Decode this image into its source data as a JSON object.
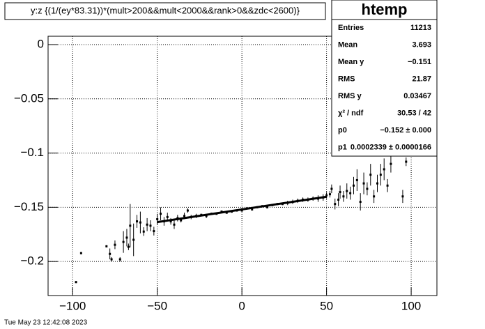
{
  "chart_data": {
    "type": "scatter",
    "title": "y:z {(1/(ey*83.31))*(mult>200&&mult<2000&&rank>0&&zdc<2600)}",
    "footer": "Tue May 23 12:42:08 2023",
    "xlim": [
      -114.5,
      115.2
    ],
    "ylim": [
      -0.2314,
      0.0077
    ],
    "xticks": [
      {
        "value": -100,
        "label": "−100"
      },
      {
        "value": -50,
        "label": "−50"
      },
      0,
      50,
      100
    ],
    "yticks": [
      0,
      {
        "value": -0.05,
        "label": "−0.05"
      },
      {
        "value": -0.1,
        "label": "−0.1"
      },
      {
        "value": -0.15,
        "label": "−0.15"
      },
      {
        "value": -0.2,
        "label": "−0.2"
      }
    ],
    "grid": true,
    "color": "#000000",
    "x": [
      -98,
      -95,
      -80,
      -78,
      -77,
      -75,
      -72,
      -70,
      -68,
      -67,
      -66,
      -64,
      -62,
      -60,
      -58,
      -56,
      -54,
      -52,
      -50,
      -48,
      -46,
      -44,
      -42,
      -40,
      -38,
      -36,
      -34,
      -32,
      -30,
      -27,
      -24,
      -21,
      -18,
      -15,
      -12,
      -9,
      -6,
      -3,
      0,
      3,
      6,
      9,
      12,
      15,
      18,
      21,
      24,
      27,
      30,
      33,
      36,
      39,
      42,
      45,
      48,
      50,
      52,
      53,
      55,
      57,
      58,
      60,
      62,
      64,
      66,
      68,
      70,
      72,
      74,
      76,
      78,
      80,
      82,
      84,
      86,
      88,
      95,
      97
    ],
    "values": [
      -0.219,
      -0.1923,
      -0.186,
      -0.193,
      -0.198,
      -0.1846,
      -0.198,
      -0.182,
      -0.178,
      -0.1865,
      -0.167,
      -0.18,
      -0.163,
      -0.164,
      -0.1724,
      -0.166,
      -0.167,
      -0.172,
      -0.161,
      -0.156,
      -0.163,
      -0.159,
      -0.163,
      -0.166,
      -0.16,
      -0.162,
      -0.158,
      -0.153,
      -0.159,
      -0.158,
      -0.157,
      -0.158,
      -0.156,
      -0.156,
      -0.154,
      -0.155,
      -0.154,
      -0.153,
      -0.153,
      -0.151,
      -0.152,
      -0.15,
      -0.149,
      -0.15,
      -0.148,
      -0.147,
      -0.147,
      -0.146,
      -0.145,
      -0.144,
      -0.143,
      -0.143,
      -0.142,
      -0.142,
      -0.141,
      -0.139,
      -0.138,
      -0.133,
      -0.147,
      -0.143,
      -0.136,
      -0.14,
      -0.135,
      -0.137,
      -0.13,
      -0.125,
      -0.145,
      -0.128,
      -0.133,
      -0.12,
      -0.14,
      -0.128,
      -0.12,
      -0.115,
      -0.13,
      -0.11,
      -0.14,
      -0.108
    ],
    "errors": [
      0.001,
      0.001,
      0.001,
      0.005,
      0.002,
      0.004,
      0.002,
      0.01,
      0.008,
      0.003,
      0.02,
      0.015,
      0.006,
      0.01,
      0.004,
      0.006,
      0.005,
      0.004,
      0.005,
      0.006,
      0.004,
      0.004,
      0.003,
      0.004,
      0.003,
      0.002,
      0.003,
      0.002,
      0.002,
      0.002,
      0.001,
      0.002,
      0.001,
      0.001,
      0.001,
      0.001,
      0.001,
      0.001,
      0.001,
      0.001,
      0.001,
      0.001,
      0.001,
      0.001,
      0.001,
      0.001,
      0.001,
      0.002,
      0.002,
      0.002,
      0.002,
      0.002,
      0.002,
      0.003,
      0.003,
      0.003,
      0.003,
      0.004,
      0.005,
      0.006,
      0.006,
      0.005,
      0.007,
      0.006,
      0.008,
      0.01,
      0.008,
      0.01,
      0.006,
      0.01,
      0.006,
      0.008,
      0.01,
      0.01,
      0.006,
      0.008,
      0.006,
      0.004
    ],
    "fit_line": {
      "x": [
        -50,
        50
      ],
      "values": [
        -0.1637,
        -0.1403
      ],
      "color": "#000000"
    },
    "stats": {
      "title": "htemp",
      "rows": [
        [
          "Entries",
          "11213"
        ],
        [
          "Mean",
          "3.693"
        ],
        [
          "Mean y",
          "−0.151"
        ],
        [
          "RMS",
          "21.87"
        ],
        [
          "RMS y",
          "0.03467"
        ],
        [
          "χ² / ndf",
          "30.53 / 42"
        ],
        [
          "p0",
          "−0.152 ± 0.000"
        ],
        [
          "p1",
          "0.0002339 ± 0.0000166"
        ]
      ]
    }
  }
}
